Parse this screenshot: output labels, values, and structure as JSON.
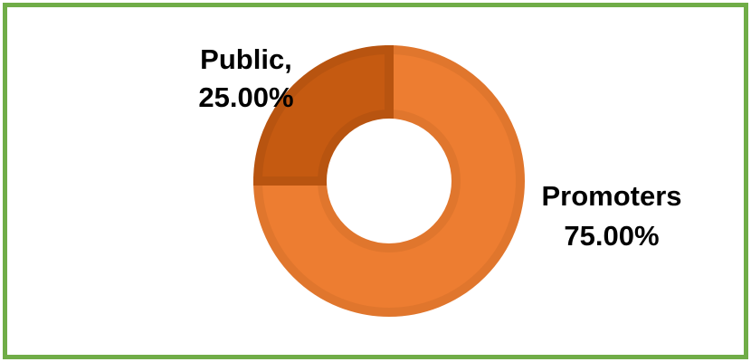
{
  "chart_data": {
    "type": "pie",
    "variant": "doughnut",
    "categories": [
      "Public",
      "Promoters"
    ],
    "values": [
      25.0,
      75.0
    ],
    "unit": "%",
    "data_labels": [
      {
        "line1": "Public,",
        "line2": "25.00%"
      },
      {
        "line1": "Promoters",
        "line2": "75.00%"
      }
    ],
    "colors": [
      "#c55a11",
      "#ed7d31"
    ],
    "edge_colors": [
      "#b85410",
      "#e0762d"
    ],
    "title": "",
    "legend": "none"
  },
  "frame": {
    "border_color": "#70ad47"
  }
}
